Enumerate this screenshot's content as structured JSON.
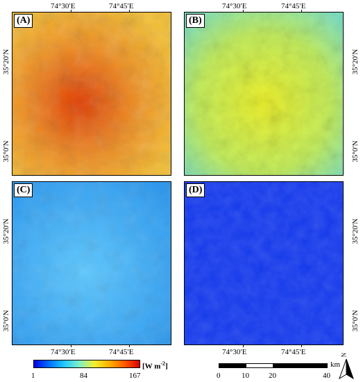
{
  "panels": [
    {
      "label": "(A)",
      "base": "#f0a020",
      "hi": "#ffd43c",
      "lo": "#d83000"
    },
    {
      "label": "(B)",
      "base": "#c8ec5a",
      "hi": "#f4f430",
      "lo": "#30c0ff"
    },
    {
      "label": "(C)",
      "base": "#3aaaf5",
      "hi": "#8ad8ff",
      "lo": "#1a70e0"
    },
    {
      "label": "(D)",
      "base": "#1438ea",
      "hi": "#2454f4",
      "lo": "#0a22c8"
    }
  ],
  "axes": {
    "lon_top": [
      "74°30′E",
      "74°45′E"
    ],
    "lon_bottom": [
      "74°30′E",
      "74°45′E"
    ],
    "lat": [
      "35°20′N",
      "35°0′N"
    ]
  },
  "colorbar": {
    "ticks": [
      "1",
      "84",
      "167"
    ],
    "unit_main": "[W m",
    "unit_sup": "-2",
    "unit_end": "]"
  },
  "scalebar": {
    "ticks": [
      "0",
      "10",
      "20",
      "40"
    ],
    "unit": "km"
  },
  "north": {
    "label": "N"
  }
}
